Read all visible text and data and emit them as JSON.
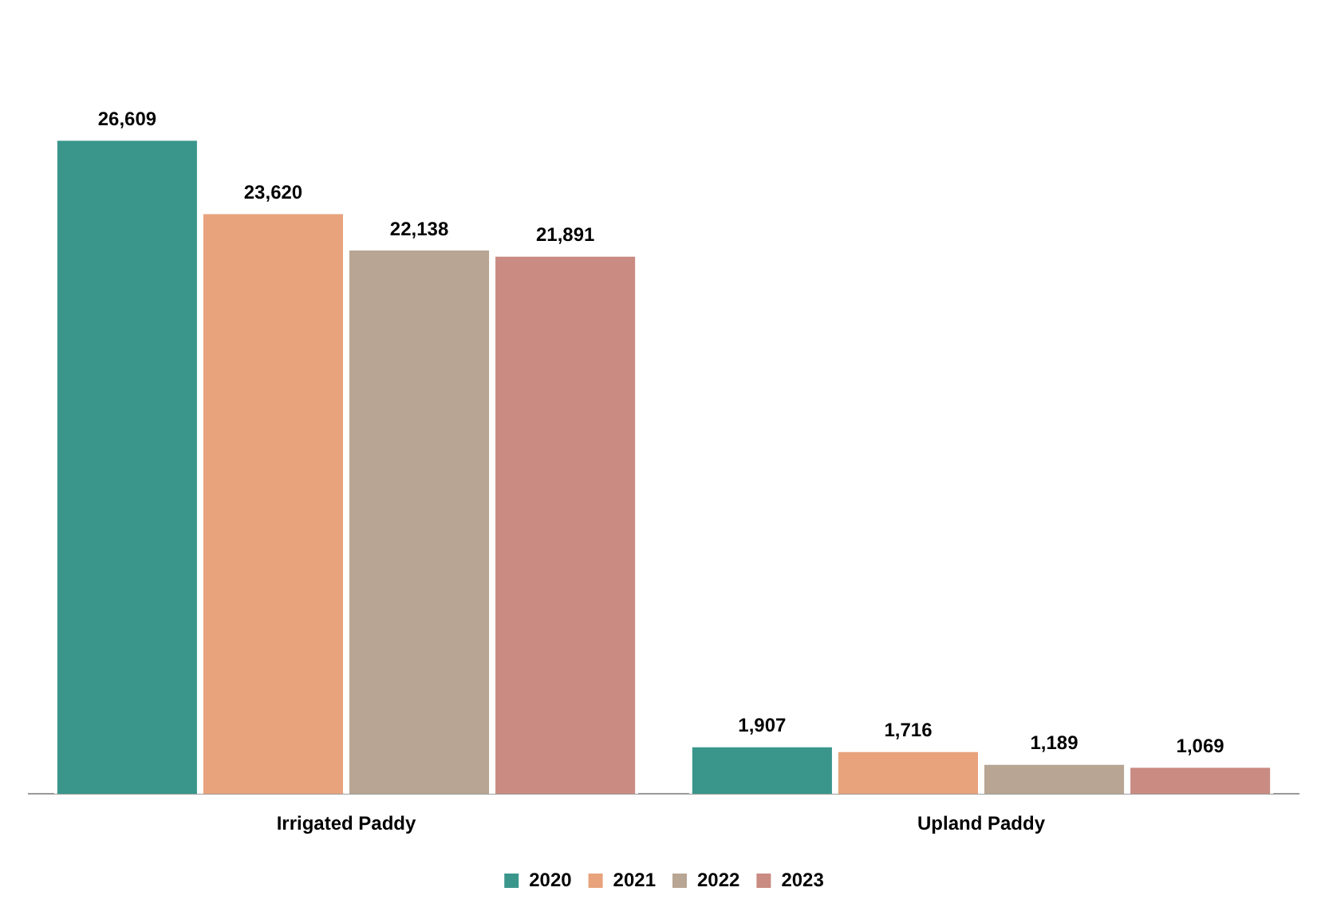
{
  "chart_data": {
    "type": "bar",
    "categories": [
      "Irrigated Paddy",
      "Upland Paddy"
    ],
    "series": [
      {
        "name": "2020",
        "color": "#3a968b",
        "values": [
          26609,
          1907
        ],
        "value_labels": [
          "26,609",
          "1,907"
        ]
      },
      {
        "name": "2021",
        "color": "#e8a37c",
        "values": [
          23620,
          1716
        ],
        "value_labels": [
          "23,620",
          "1,716"
        ]
      },
      {
        "name": "2022",
        "color": "#b8a593",
        "values": [
          22138,
          1189
        ],
        "value_labels": [
          "22,138",
          "1,189"
        ]
      },
      {
        "name": "2023",
        "color": "#c98b82",
        "values": [
          21891,
          1069
        ],
        "value_labels": [
          "21,891",
          "1,069"
        ]
      }
    ],
    "legend": "bottom",
    "grid": false
  }
}
